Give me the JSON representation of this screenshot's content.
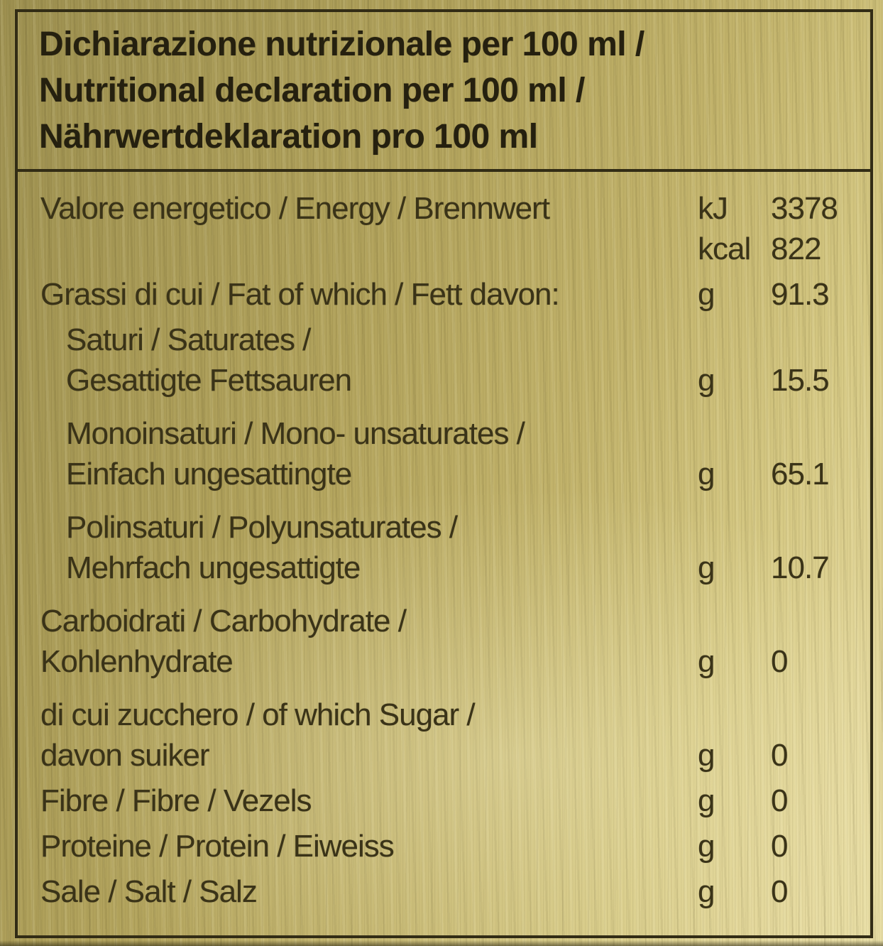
{
  "header": {
    "lines": [
      "Dichiarazione nutrizionale per 100 ml /",
      "Nutritional declaration per 100 ml /",
      "Nährwertdeklaration pro 100 ml"
    ]
  },
  "table": {
    "rows": [
      {
        "indent": false,
        "gap": false,
        "lines": [
          {
            "text": "Valore energetico / Energy / Brennwert",
            "unit": "kJ",
            "value": "3378"
          },
          {
            "text": "",
            "unit": "kcal",
            "value": "822"
          }
        ]
      },
      {
        "indent": false,
        "gap": false,
        "lines": [
          {
            "text": "Grassi di cui / Fat of which / Fett davon:",
            "unit": "g",
            "value": "91.3"
          }
        ]
      },
      {
        "indent": true,
        "gap": false,
        "lines": [
          {
            "text": "Saturi / Saturates /"
          },
          {
            "text": "Gesattigte Fettsauren",
            "unit": "g",
            "value": "15.5"
          }
        ]
      },
      {
        "indent": true,
        "gap": true,
        "lines": [
          {
            "text": "Monoinsaturi / Mono- unsaturates /"
          },
          {
            "text": "Einfach ungesattingte",
            "unit": "g",
            "value": "65.1"
          }
        ]
      },
      {
        "indent": true,
        "gap": true,
        "lines": [
          {
            "text": "Polinsaturi / Polyunsaturates /"
          },
          {
            "text": "Mehrfach ungesattigte",
            "unit": "g",
            "value": "10.7"
          }
        ]
      },
      {
        "indent": false,
        "gap": true,
        "lines": [
          {
            "text": "Carboidrati / Carbohydrate /"
          },
          {
            "text": "Kohlenhydrate",
            "unit": "g",
            "value": "0"
          }
        ]
      },
      {
        "indent": false,
        "gap": true,
        "lines": [
          {
            "text": "di cui zucchero / of which Sugar /"
          },
          {
            "text": "davon suiker",
            "unit": "g",
            "value": "0"
          }
        ]
      },
      {
        "indent": false,
        "gap": false,
        "lines": [
          {
            "text": "Fibre / Fibre / Vezels",
            "unit": "g",
            "value": "0"
          }
        ]
      },
      {
        "indent": false,
        "gap": false,
        "lines": [
          {
            "text": "Proteine / Protein / Eiweiss",
            "unit": "g",
            "value": "0"
          }
        ]
      },
      {
        "indent": false,
        "gap": false,
        "lines": [
          {
            "text": "Sale / Salt / Salz",
            "unit": "g",
            "value": "0"
          }
        ]
      }
    ]
  },
  "colors": {
    "gold_dark": "#9d9050",
    "gold_base": "#b6a75f",
    "gold_light": "#e8dda1",
    "ink": "#3a3318",
    "ink_header": "#25200f",
    "border": "#322c15"
  }
}
